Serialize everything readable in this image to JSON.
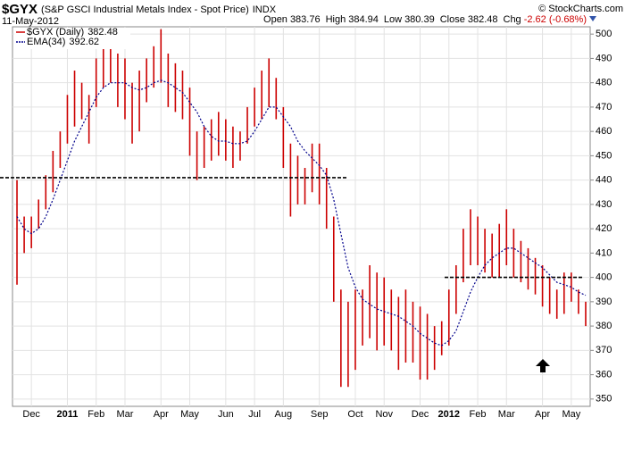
{
  "header": {
    "symbol": "$GYX",
    "name": "(S&P GSCI Industrial Metals Index - Spot Price)",
    "exchange": "INDX",
    "date": "11-May-2012",
    "quote": [
      {
        "label": "Open",
        "value": 383.76
      },
      {
        "label": "High",
        "value": 384.94
      },
      {
        "label": "Low",
        "value": 380.39
      },
      {
        "label": "Close",
        "value": 382.48
      },
      {
        "label": "Chg",
        "value": -2.62,
        "value_label": "-2.62 (-0.68%)"
      }
    ],
    "copyright": "© StockCharts.com"
  },
  "chart_data": {
    "type": "hilo",
    "categories": [
      null,
      null,
      "Dec",
      null,
      null,
      null,
      null,
      "2011",
      null,
      null,
      null,
      "Feb",
      null,
      null,
      null,
      "Mar",
      null,
      null,
      null,
      null,
      "Apr",
      null,
      null,
      null,
      "May",
      null,
      null,
      null,
      null,
      "Jun",
      null,
      null,
      null,
      "Jul",
      null,
      null,
      null,
      "Aug",
      null,
      null,
      null,
      null,
      "Sep",
      null,
      null,
      null,
      null,
      "Oct",
      null,
      null,
      null,
      "Nov",
      null,
      null,
      null,
      null,
      "Dec",
      null,
      null,
      null,
      "2012",
      null,
      null,
      null,
      "Feb",
      null,
      null,
      null,
      "Mar",
      null,
      null,
      null,
      null,
      "Apr",
      null,
      null,
      null,
      "May",
      null,
      null
    ],
    "series": [
      {
        "name": "$GYX (Daily)",
        "last": 382.48,
        "color": "#cc0000",
        "high": [
          440,
          425,
          425,
          432,
          442,
          452,
          460,
          475,
          485,
          480,
          475,
          490,
          495,
          497,
          492,
          490,
          480,
          485,
          490,
          495,
          502,
          492,
          488,
          485,
          478,
          460,
          462,
          465,
          468,
          465,
          462,
          460,
          470,
          478,
          485,
          490,
          482,
          470,
          455,
          450,
          445,
          455,
          455,
          445,
          425,
          395,
          390,
          395,
          395,
          405,
          402,
          400,
          395,
          392,
          395,
          390,
          388,
          385,
          380,
          382,
          395,
          405,
          420,
          428,
          425,
          420,
          418,
          422,
          428,
          420,
          415,
          412,
          408,
          405,
          400,
          395,
          402,
          402,
          395,
          390
        ],
        "low": [
          397,
          410,
          412,
          420,
          428,
          435,
          445,
          455,
          462,
          465,
          455,
          470,
          478,
          480,
          470,
          465,
          455,
          460,
          472,
          478,
          480,
          470,
          468,
          465,
          450,
          440,
          445,
          448,
          450,
          448,
          445,
          448,
          455,
          462,
          465,
          470,
          465,
          445,
          425,
          430,
          430,
          435,
          430,
          420,
          390,
          355,
          355,
          362,
          372,
          375,
          370,
          372,
          370,
          362,
          365,
          365,
          358,
          358,
          362,
          368,
          372,
          385,
          398,
          405,
          405,
          402,
          400,
          400,
          405,
          400,
          398,
          395,
          393,
          388,
          385,
          383,
          385,
          390,
          385,
          380
        ]
      },
      {
        "name": "EMA(34)",
        "last": 392.62,
        "color": "#00008b",
        "values": [
          425,
          420,
          418,
          420,
          425,
          432,
          440,
          448,
          456,
          462,
          468,
          474,
          478,
          480,
          480,
          480,
          478,
          477,
          478,
          480,
          481,
          480,
          478,
          476,
          472,
          468,
          462,
          458,
          456,
          456,
          455,
          455,
          456,
          460,
          465,
          470,
          470,
          466,
          462,
          456,
          452,
          449,
          446,
          442,
          432,
          418,
          404,
          396,
          391,
          389,
          387,
          386,
          385,
          384,
          382,
          380,
          377,
          375,
          373,
          372,
          374,
          378,
          386,
          394,
          400,
          405,
          408,
          410,
          412,
          412,
          410,
          408,
          406,
          404,
          401,
          398,
          397,
          396,
          394,
          392.62
        ]
      }
    ],
    "horizontal_lines": [
      441,
      400
    ],
    "ylim": [
      347,
      503
    ],
    "yticks": [
      350,
      360,
      370,
      380,
      390,
      400,
      410,
      420,
      430,
      440,
      450,
      460,
      470,
      480,
      490,
      500
    ],
    "grid": true
  }
}
